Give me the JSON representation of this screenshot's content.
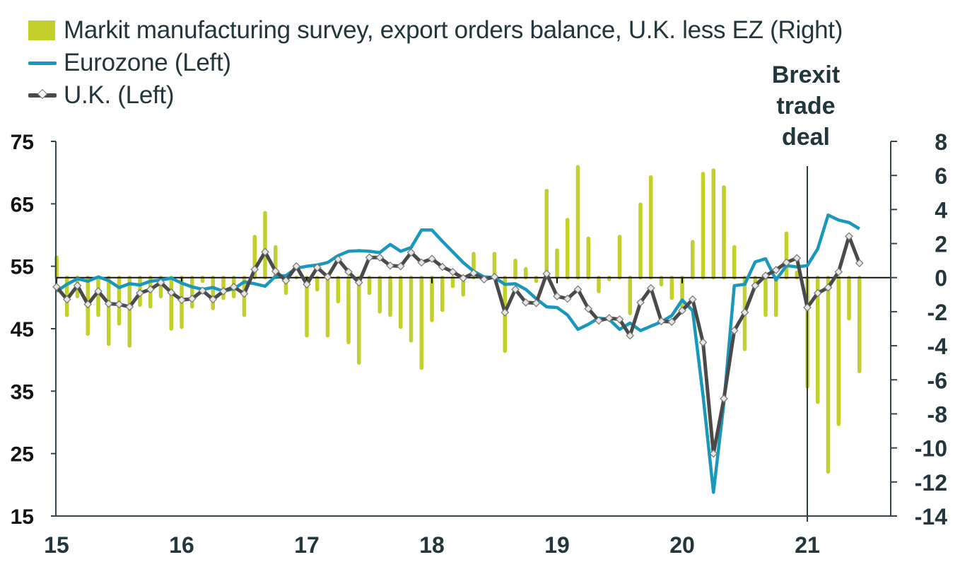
{
  "chart_data": {
    "type": "bar+line",
    "title": "",
    "legend": [
      {
        "label": "Markit manufacturing survey, export orders balance, U.K. less EZ (Right)",
        "kind": "bar",
        "color": "#c3cf2b"
      },
      {
        "label": "Eurozone (Left)",
        "kind": "line",
        "color": "#1998bc"
      },
      {
        "label": "U.K. (Left)",
        "kind": "line-marker",
        "color": "#4a4a4a"
      }
    ],
    "legend_position": "top-left",
    "annotation": {
      "lines": [
        "Brexit",
        "trade",
        "deal"
      ],
      "at": "2021-01"
    },
    "x": {
      "start": "2015-01",
      "frequency": "monthly",
      "tick_labels": [
        "15",
        "16",
        "17",
        "18",
        "19",
        "20",
        "21"
      ]
    },
    "y_left": {
      "range": [
        15,
        75
      ],
      "ticks": [
        "75",
        "65",
        "55",
        "45",
        "35",
        "25",
        "15"
      ]
    },
    "y_right": {
      "range": [
        -14,
        8
      ],
      "ticks": [
        "8",
        "6",
        "4",
        "2",
        "0",
        "-2",
        "-4",
        "-6",
        "-8",
        "-10",
        "-12",
        "-14"
      ]
    },
    "series": [
      {
        "name": "Markit manufacturing survey, export orders balance, U.K. less EZ (Right)",
        "axis": "right",
        "type": "bar",
        "values": [
          1.2,
          -2.2,
          -1.1,
          -3.3,
          -2.2,
          -3.9,
          -2.7,
          -4.0,
          -1.6,
          -1.7,
          -1.1,
          -3.0,
          -2.9,
          -1.7,
          -0.2,
          -1.8,
          -1.2,
          -1.1,
          -2.2,
          2.4,
          3.8,
          1.8,
          -0.9,
          0.0,
          -3.4,
          -0.7,
          -3.4,
          -1.4,
          -3.8,
          -5.0,
          -0.9,
          -2.0,
          -2.2,
          -2.9,
          -3.7,
          -5.3,
          -2.5,
          -1.9,
          -0.5,
          -1.0,
          1.4,
          0.0,
          1.4,
          -4.3,
          1.0,
          0.5,
          -0.2,
          5.1,
          1.6,
          3.4,
          6.5,
          2.3,
          -0.8,
          -0.1,
          2.4,
          -2.1,
          4.3,
          5.9,
          -0.4,
          -1.2,
          -1.7,
          2.1,
          6.1,
          6.3,
          5.3,
          1.8,
          -4.2,
          -0.5,
          -2.2,
          -2.2,
          2.6,
          0.3,
          -6.4,
          -7.3,
          -11.4,
          -8.6,
          -2.4,
          -5.5
        ]
      },
      {
        "name": "Eurozone (Left)",
        "axis": "left",
        "type": "line",
        "values": [
          51.0,
          52.1,
          53.0,
          52.6,
          53.3,
          52.7,
          51.6,
          52.2,
          52.0,
          52.6,
          52.8,
          53.1,
          52.3,
          51.7,
          51.3,
          51.6,
          51.0,
          51.4,
          52.5,
          52.2,
          51.8,
          53.4,
          53.5,
          54.7,
          55.0,
          55.2,
          55.6,
          56.7,
          57.4,
          57.5,
          57.4,
          57.2,
          58.5,
          57.4,
          58.0,
          60.8,
          60.8,
          59.0,
          57.3,
          55.6,
          54.2,
          53.3,
          53.2,
          52.1,
          52.2,
          51.3,
          49.8,
          48.5,
          48.4,
          47.2,
          44.9,
          45.7,
          46.7,
          46.5,
          44.9,
          45.9,
          44.7,
          45.4,
          46.1,
          47.1,
          49.6,
          47.9,
          34.3,
          18.8,
          33.1,
          51.9,
          52.1,
          55.7,
          56.2,
          52.8,
          55.1,
          54.9,
          55.1,
          57.8,
          63.2,
          62.4,
          62.0,
          61.0
        ]
      },
      {
        "name": "U.K. (Left)",
        "axis": "left",
        "type": "line",
        "marker": "diamond",
        "values": [
          51.7,
          49.7,
          51.9,
          48.9,
          51.0,
          49.0,
          48.9,
          48.5,
          50.7,
          51.3,
          52.4,
          50.8,
          49.6,
          49.8,
          51.1,
          49.7,
          51.0,
          51.7,
          50.6,
          54.5,
          57.3,
          54.2,
          52.7,
          55.0,
          52.1,
          54.8,
          53.3,
          56.1,
          54.1,
          52.4,
          56.4,
          56.4,
          55.1,
          55.0,
          57.2,
          55.6,
          56.2,
          54.9,
          54.1,
          53.1,
          53.9,
          52.9,
          53.3,
          47.6,
          51.3,
          49.2,
          49.1,
          53.8,
          50.2,
          49.8,
          51.3,
          48.2,
          46.3,
          46.7,
          46.5,
          43.9,
          49.2,
          51.5,
          46.2,
          46.1,
          47.9,
          49.7,
          42.8,
          25.0,
          33.8,
          44.7,
          47.6,
          51.9,
          53.5,
          54.4,
          55.6,
          56.3,
          48.4,
          50.7,
          51.6,
          54.1,
          59.8,
          55.5
        ]
      }
    ]
  }
}
